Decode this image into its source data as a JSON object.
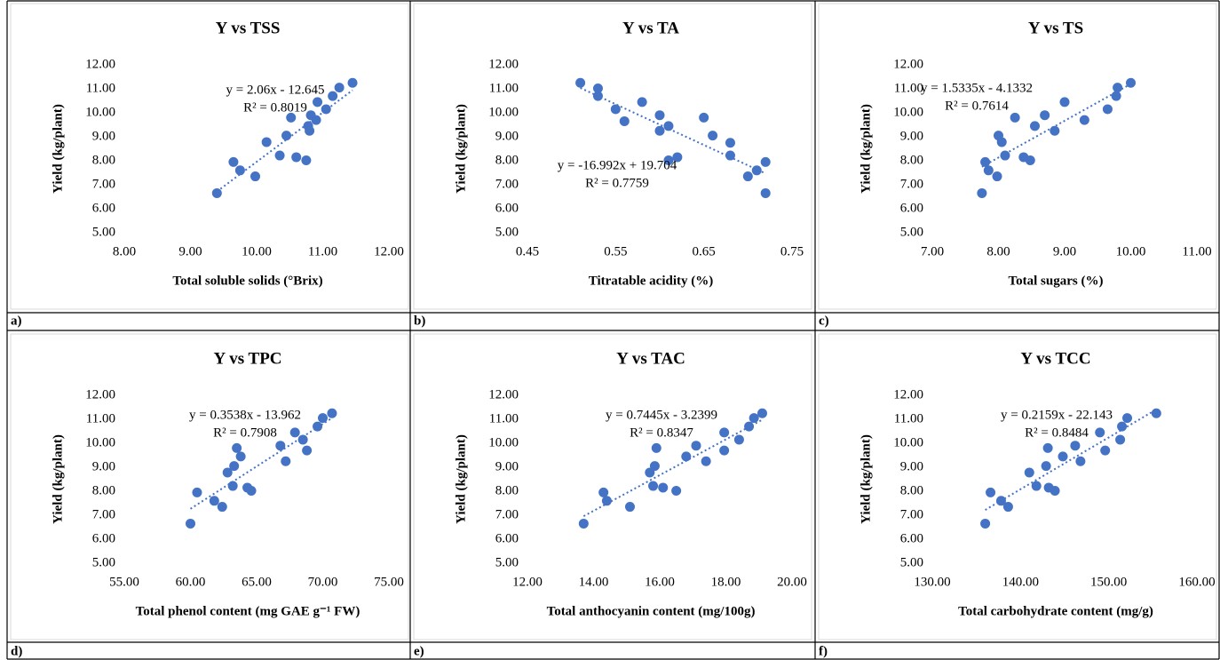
{
  "chart_data": [
    {
      "type": "scatter",
      "panel": "a)",
      "title": "Y vs TSS",
      "x_label": "Total soluble solids (°Brix)",
      "y_label": "Yield (kg/plant)",
      "color": "#4472c4",
      "grid": false,
      "xlim": [
        8,
        12
      ],
      "ylim": [
        5,
        12
      ],
      "xticks": [
        {
          "value": 8,
          "label": "8.00"
        },
        {
          "value": 9,
          "label": "9.00"
        },
        {
          "value": 10,
          "label": "10.00"
        },
        {
          "value": 11,
          "label": "11.00"
        },
        {
          "value": 12,
          "label": "12.00"
        }
      ],
      "yticks": [
        {
          "value": 5,
          "label": "5.00"
        },
        {
          "value": 6,
          "label": "6.00"
        },
        {
          "value": 7,
          "label": "7.00"
        },
        {
          "value": 8,
          "label": "8.00"
        },
        {
          "value": 9,
          "label": "9.00"
        },
        {
          "value": 10,
          "label": "10.00"
        },
        {
          "value": 11,
          "label": "11.00"
        },
        {
          "value": 12,
          "label": "12.00"
        }
      ],
      "x": [
        9.4,
        9.65,
        9.75,
        9.98,
        10.15,
        10.35,
        10.45,
        10.52,
        10.6,
        10.75,
        10.78,
        10.8,
        10.82,
        10.9,
        10.92,
        11.05,
        11.15,
        11.25,
        11.45
      ],
      "values": [
        6.65,
        7.95,
        7.6,
        7.35,
        8.78,
        8.22,
        9.05,
        9.8,
        8.15,
        8.02,
        9.45,
        9.25,
        9.9,
        9.7,
        10.45,
        10.15,
        10.7,
        11.05,
        11.25
      ],
      "trendline": {
        "slope": 2.06,
        "intercept": -12.645,
        "equation": "y = 2.06x - 12.645",
        "r2": "R² = 0.8019"
      }
    },
    {
      "type": "scatter",
      "panel": "b)",
      "title": "Y vs TA",
      "x_label": "Titratable acidity (%)",
      "y_label": "Yield (kg/plant)",
      "color": "#4472c4",
      "grid": false,
      "xlim": [
        0.45,
        0.75
      ],
      "ylim": [
        5,
        12
      ],
      "xticks": [
        0.45,
        0.55,
        0.65,
        0.75
      ],
      "yticks": [
        {
          "value": 5,
          "label": "5.00"
        },
        {
          "value": 6,
          "label": "6.00"
        },
        {
          "value": 7,
          "label": "7.00"
        },
        {
          "value": 8,
          "label": "8.00"
        },
        {
          "value": 9,
          "label": "9.00"
        },
        {
          "value": 10,
          "label": "10.00"
        },
        {
          "value": 11,
          "label": "11.00"
        },
        {
          "value": 12,
          "label": "12.00"
        }
      ],
      "x": [
        0.51,
        0.53,
        0.53,
        0.55,
        0.56,
        0.58,
        0.6,
        0.6,
        0.61,
        0.61,
        0.62,
        0.65,
        0.66,
        0.68,
        0.68,
        0.7,
        0.71,
        0.72,
        0.72
      ],
      "values": [
        11.25,
        11.02,
        10.7,
        10.15,
        9.65,
        10.45,
        9.9,
        9.25,
        9.45,
        8.02,
        8.15,
        9.8,
        9.05,
        8.75,
        8.22,
        7.35,
        7.6,
        7.95,
        6.65
      ],
      "trendline": {
        "slope": -16.992,
        "intercept": 19.704,
        "equation": "y = -16.992x + 19.704",
        "r2": "R² = 0.7759"
      }
    },
    {
      "type": "scatter",
      "panel": "c)",
      "title": "Y vs TS",
      "x_label": "Total sugars (%)",
      "y_label": "Yield (kg/plant)",
      "color": "#4472c4",
      "grid": false,
      "xlim": [
        7,
        11
      ],
      "ylim": [
        5,
        12
      ],
      "xticks": [
        {
          "value": 7,
          "label": "7.00"
        },
        {
          "value": 8,
          "label": "8.00"
        },
        {
          "value": 9,
          "label": "9.00"
        },
        {
          "value": 10,
          "label": "10.00"
        },
        {
          "value": 11,
          "label": "11.00"
        }
      ],
      "yticks": [
        {
          "value": 5,
          "label": "5.00"
        },
        {
          "value": 6,
          "label": "6.00"
        },
        {
          "value": 7,
          "label": "7.00"
        },
        {
          "value": 8,
          "label": "8.00"
        },
        {
          "value": 9,
          "label": "9.00"
        },
        {
          "value": 10,
          "label": "10.00"
        },
        {
          "value": 11,
          "label": "11.00"
        },
        {
          "value": 12,
          "label": "12.00"
        }
      ],
      "x": [
        7.75,
        7.8,
        7.85,
        7.98,
        8.0,
        8.05,
        8.1,
        8.25,
        8.38,
        8.48,
        8.55,
        8.7,
        8.85,
        9.0,
        9.3,
        9.65,
        9.78,
        9.8,
        10.0
      ],
      "values": [
        6.65,
        7.95,
        7.6,
        7.35,
        9.05,
        8.78,
        8.22,
        9.8,
        8.15,
        8.02,
        9.45,
        9.9,
        9.25,
        10.45,
        9.7,
        10.15,
        10.7,
        11.05,
        11.25
      ],
      "trendline": {
        "slope": 1.5335,
        "intercept": -4.1332,
        "equation": "y = 1.5335x - 4.1332",
        "r2": "R² = 0.7614"
      }
    },
    {
      "type": "scatter",
      "panel": "d)",
      "title": "Y vs TPC",
      "x_label": "Total phenol content (mg GAE g⁻¹ FW)",
      "y_label": "Yield (kg/plant)",
      "color": "#4472c4",
      "grid": false,
      "xlim": [
        55,
        75
      ],
      "ylim": [
        5,
        12
      ],
      "xticks": [
        {
          "value": 55,
          "label": "55.00"
        },
        {
          "value": 60,
          "label": "60.00"
        },
        {
          "value": 65,
          "label": "65.00"
        },
        {
          "value": 70,
          "label": "70.00"
        },
        {
          "value": 75,
          "label": "75.00"
        }
      ],
      "yticks": [
        {
          "value": 5,
          "label": "5.00"
        },
        {
          "value": 6,
          "label": "6.00"
        },
        {
          "value": 7,
          "label": "7.00"
        },
        {
          "value": 8,
          "label": "8.00"
        },
        {
          "value": 9,
          "label": "9.00"
        },
        {
          "value": 10,
          "label": "10.00"
        },
        {
          "value": 11,
          "label": "11.00"
        },
        {
          "value": 12,
          "label": "12.00"
        }
      ],
      "x": [
        60.0,
        60.5,
        61.8,
        62.4,
        62.8,
        63.2,
        63.3,
        63.5,
        63.8,
        64.3,
        64.6,
        66.8,
        67.2,
        67.9,
        68.5,
        68.8,
        69.6,
        70.0,
        70.7
      ],
      "values": [
        6.65,
        7.95,
        7.6,
        7.35,
        8.78,
        8.22,
        9.05,
        9.8,
        9.45,
        8.15,
        8.02,
        9.9,
        9.25,
        10.45,
        10.15,
        9.7,
        10.7,
        11.05,
        11.25
      ],
      "trendline": {
        "slope": 0.3538,
        "intercept": -13.962,
        "equation": "y = 0.3538x - 13.962",
        "r2": "R² = 0.7908"
      }
    },
    {
      "type": "scatter",
      "panel": "e)",
      "title": "Y vs TAC",
      "x_label": "Total anthocyanin content (mg/100g)",
      "y_label": "Yield (kg/plant)",
      "color": "#4472c4",
      "grid": false,
      "xlim": [
        12,
        20
      ],
      "ylim": [
        5,
        12
      ],
      "xticks": [
        {
          "value": 12,
          "label": "12.00"
        },
        {
          "value": 14,
          "label": "14.00"
        },
        {
          "value": 16,
          "label": "16.00"
        },
        {
          "value": 18,
          "label": "18.00"
        },
        {
          "value": 20,
          "label": "20.00"
        }
      ],
      "yticks": [
        {
          "value": 5,
          "label": "5.00"
        },
        {
          "value": 6,
          "label": "6.00"
        },
        {
          "value": 7,
          "label": "7.00"
        },
        {
          "value": 8,
          "label": "8.00"
        },
        {
          "value": 9,
          "label": "9.00"
        },
        {
          "value": 10,
          "label": "10.00"
        },
        {
          "value": 11,
          "label": "11.00"
        },
        {
          "value": 12,
          "label": "12.00"
        }
      ],
      "x": [
        13.7,
        14.3,
        14.4,
        15.1,
        15.7,
        15.8,
        15.85,
        15.9,
        16.1,
        16.5,
        16.8,
        17.1,
        17.4,
        17.95,
        17.95,
        18.4,
        18.7,
        18.85,
        19.1
      ],
      "values": [
        6.65,
        7.95,
        7.6,
        7.35,
        8.78,
        8.22,
        9.05,
        9.8,
        8.15,
        8.02,
        9.45,
        9.9,
        9.25,
        10.45,
        9.7,
        10.15,
        10.7,
        11.05,
        11.25
      ],
      "trendline": {
        "slope": 0.7445,
        "intercept": -3.2399,
        "equation": "y = 0.7445x - 3.2399",
        "r2": "R² = 0.8347"
      }
    },
    {
      "type": "scatter",
      "panel": "f)",
      "title": "Y vs TCC",
      "x_label": "Total carbohydrate content (mg/g)",
      "y_label": "Yield (kg/plant)",
      "color": "#4472c4",
      "grid": false,
      "xlim": [
        130,
        160
      ],
      "ylim": [
        5,
        12
      ],
      "xticks": [
        {
          "value": 130,
          "label": "130.00"
        },
        {
          "value": 140,
          "label": "140.00"
        },
        {
          "value": 150,
          "label": "150.00"
        },
        {
          "value": 160,
          "label": "160.00"
        }
      ],
      "yticks": [
        {
          "value": 5,
          "label": "5.00"
        },
        {
          "value": 6,
          "label": "6.00"
        },
        {
          "value": 7,
          "label": "7.00"
        },
        {
          "value": 8,
          "label": "8.00"
        },
        {
          "value": 9,
          "label": "9.00"
        },
        {
          "value": 10,
          "label": "10.00"
        },
        {
          "value": 11,
          "label": "11.00"
        },
        {
          "value": 12,
          "label": "12.00"
        }
      ],
      "x": [
        136,
        136.6,
        137.8,
        138.6,
        141,
        141.8,
        142.9,
        143.1,
        143.2,
        143.9,
        144.8,
        146.8,
        146.2,
        149.0,
        149.6,
        151.3,
        151.5,
        152.1,
        155.4
      ],
      "values": [
        6.65,
        7.95,
        7.6,
        7.35,
        8.78,
        8.22,
        9.05,
        9.8,
        8.15,
        8.02,
        9.45,
        9.25,
        9.9,
        10.45,
        9.7,
        10.15,
        10.7,
        11.05,
        11.25
      ],
      "trendline": {
        "slope": 0.2159,
        "intercept": -22.143,
        "equation": "y = 0.2159x - 22.143",
        "r2": "R² = 0.8484"
      }
    }
  ]
}
